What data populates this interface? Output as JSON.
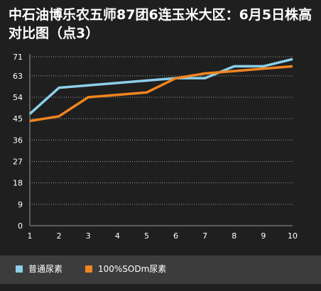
{
  "chart_data": {
    "type": "line",
    "title": "中石油博乐农五师87团6连玉米大区：6月5日株高对比图（点3）",
    "x": [
      1,
      2,
      3,
      4,
      5,
      6,
      7,
      8,
      9,
      10
    ],
    "x_tick_labels": [
      "1",
      "2",
      "3",
      "4",
      "5",
      "6",
      "7",
      "8",
      "9",
      "10"
    ],
    "y_tick_labels": [
      "0",
      "9",
      "18",
      "27",
      "36",
      "45",
      "54",
      "63",
      "71"
    ],
    "y_ticks": [
      0,
      9,
      18,
      27,
      36,
      45,
      54,
      63,
      71
    ],
    "ylim": [
      0,
      71
    ],
    "grid": true,
    "legend_position": "bottom",
    "background_color": "#1f1f1f",
    "series": [
      {
        "name": "普通尿素",
        "color": "#8ccfea",
        "values": [
          47,
          58,
          59,
          60,
          61,
          62,
          62,
          67,
          67,
          70
        ]
      },
      {
        "name": "100%SODm尿素",
        "color": "#f0851f",
        "values": [
          44,
          46,
          54,
          55,
          56,
          62,
          64,
          65,
          66,
          67
        ]
      }
    ]
  }
}
